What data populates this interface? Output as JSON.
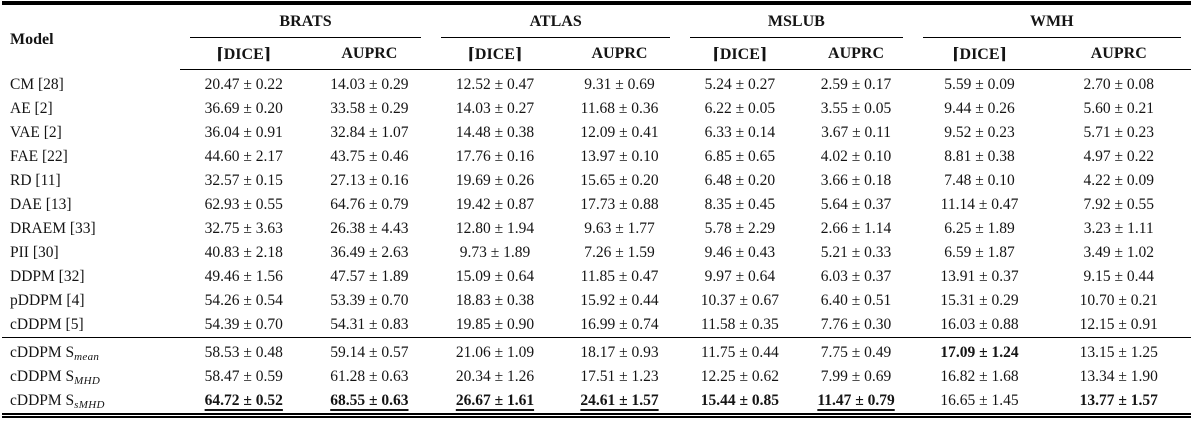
{
  "table": {
    "model_header": "Model",
    "groups": [
      {
        "label": "BRATS"
      },
      {
        "label": "ATLAS"
      },
      {
        "label": "MSLUB"
      },
      {
        "label": "WMH"
      }
    ],
    "subheaders": [
      "⌈DICE⌉",
      "AUPRC"
    ],
    "sections": [
      {
        "rows": [
          {
            "model": "CM [28]",
            "sub": "",
            "cells": [
              "20.47 ± 0.22",
              "14.03 ± 0.29",
              "12.52 ± 0.47",
              "9.31 ± 0.69",
              "5.24 ± 0.27",
              "2.59 ± 0.17",
              "5.59 ± 0.09",
              "2.70 ± 0.08"
            ]
          },
          {
            "model": "AE [2]",
            "sub": "",
            "cells": [
              "36.69 ± 0.20",
              "33.58 ± 0.29",
              "14.03 ± 0.27",
              "11.68 ± 0.36",
              "6.22 ± 0.05",
              "3.55 ± 0.05",
              "9.44 ± 0.26",
              "5.60 ± 0.21"
            ]
          },
          {
            "model": "VAE [2]",
            "sub": "",
            "cells": [
              "36.04 ± 0.91",
              "32.84 ± 1.07",
              "14.48 ± 0.38",
              "12.09 ± 0.41",
              "6.33 ± 0.14",
              "3.67 ± 0.11",
              "9.52 ± 0.23",
              "5.71 ± 0.23"
            ]
          },
          {
            "model": "FAE [22]",
            "sub": "",
            "cells": [
              "44.60 ± 2.17",
              "43.75 ± 0.46",
              "17.76 ± 0.16",
              "13.97 ± 0.10",
              "6.85 ± 0.65",
              "4.02 ± 0.10",
              "8.81 ± 0.38",
              "4.97 ± 0.22"
            ]
          },
          {
            "model": "RD [11]",
            "sub": "",
            "cells": [
              "32.57 ± 0.15",
              "27.13 ± 0.16",
              "19.69 ± 0.26",
              "15.65 ± 0.20",
              "6.48 ± 0.20",
              "3.66 ± 0.18",
              "7.48 ± 0.10",
              "4.22 ± 0.09"
            ]
          },
          {
            "model": "DAE [13]",
            "sub": "",
            "cells": [
              "62.93 ± 0.55",
              "64.76 ± 0.79",
              "19.42 ± 0.87",
              "17.73 ± 0.88",
              "8.35 ± 0.45",
              "5.64 ± 0.37",
              "11.14 ± 0.47",
              "7.92 ± 0.55"
            ]
          },
          {
            "model": "DRAEM [33]",
            "sub": "",
            "cells": [
              "32.75 ± 3.63",
              "26.38 ± 4.43",
              "12.80 ± 1.94",
              "9.63 ± 1.77",
              "5.78 ± 2.29",
              "2.66 ± 1.14",
              "6.25 ± 1.89",
              "3.23 ± 1.11"
            ]
          },
          {
            "model": "PII [30]",
            "sub": "",
            "cells": [
              "40.83 ± 2.18",
              "36.49 ± 2.63",
              "9.73 ± 1.89",
              "7.26 ± 1.59",
              "9.46 ± 0.43",
              "5.21 ± 0.33",
              "6.59 ± 1.87",
              "3.49 ± 1.02"
            ]
          },
          {
            "model": "DDPM [32]",
            "sub": "",
            "cells": [
              "49.46 ± 1.56",
              "47.57 ± 1.89",
              "15.09 ± 0.64",
              "11.85 ± 0.47",
              "9.97 ± 0.64",
              "6.03 ± 0.37",
              "13.91 ± 0.37",
              "9.15 ± 0.44"
            ]
          },
          {
            "model": "pDDPM [4]",
            "sub": "",
            "cells": [
              "54.26 ± 0.54",
              "53.39 ± 0.70",
              "18.83 ± 0.38",
              "15.92 ± 0.44",
              "10.37 ± 0.67",
              "6.40 ± 0.51",
              "15.31 ± 0.29",
              "10.70 ± 0.21"
            ]
          },
          {
            "model": "cDDPM [5]",
            "sub": "",
            "cells": [
              "54.39 ± 0.70",
              "54.31 ± 0.83",
              "19.85 ± 0.90",
              "16.99 ± 0.74",
              "11.58 ± 0.35",
              "7.76 ± 0.30",
              "16.03 ± 0.88",
              "12.15 ± 0.91"
            ]
          }
        ]
      },
      {
        "rows": [
          {
            "model": "cDDPM S",
            "sub": "mean",
            "cells": [
              "58.53 ± 0.48",
              "59.14 ± 0.57",
              "21.06 ± 1.09",
              "18.17 ± 0.93",
              "11.75 ± 0.44",
              "7.75 ± 0.49",
              "17.09 ± 1.24",
              "13.15 ± 1.25"
            ],
            "bold": [
              6
            ]
          },
          {
            "model": "cDDPM S",
            "sub": "MHD",
            "cells": [
              "58.47 ± 0.59",
              "61.28 ± 0.63",
              "20.34 ± 1.26",
              "17.51 ± 1.23",
              "12.25 ± 0.62",
              "7.99 ± 0.69",
              "16.82 ± 1.68",
              "13.34 ± 1.90"
            ]
          },
          {
            "model": "cDDPM S",
            "sub": "sMHD",
            "cells": [
              "64.72 ± 0.52",
              "68.55 ± 0.63",
              "26.67 ± 1.61",
              "24.61 ± 1.57",
              "15.44 ± 0.85",
              "11.47 ± 0.79",
              "16.65 ± 1.45",
              "13.77 ± 1.57"
            ],
            "bold": [
              0,
              1,
              2,
              3,
              4,
              5,
              7
            ],
            "underline": [
              0,
              1,
              2,
              3,
              5
            ]
          }
        ]
      }
    ]
  }
}
